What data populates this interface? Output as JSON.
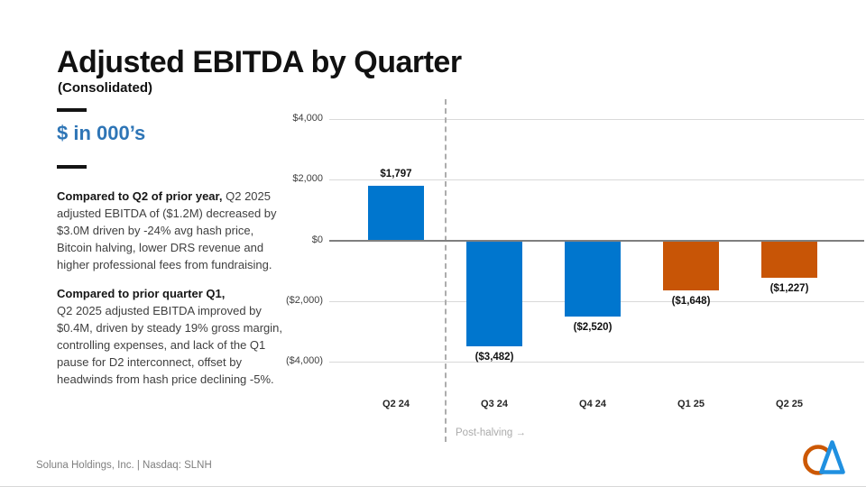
{
  "header": {
    "title": "Adjusted EBITDA by Quarter",
    "subtitle": "(Consolidated)",
    "units_label": "$ in 000’s"
  },
  "commentary": [
    {
      "lead": "Compared to Q2 of prior year,",
      "rest": " Q2 2025 adjusted EBITDA of ($1.2M) decreased by $3.0M driven by -24% avg hash price, Bitcoin halving, lower DRS revenue and higher professional fees from fundraising."
    },
    {
      "lead": "Compared to prior quarter Q1,",
      "rest": "Q2 2025 adjusted EBITDA improved by $0.4M, driven by steady 19% gross margin, controlling expenses, and lack of the Q1 pause for D2 interconnect, offset by headwinds from hash price declining -5%."
    }
  ],
  "chart_data": {
    "type": "bar",
    "title": "Adjusted EBITDA by Quarter (Consolidated), $ in 000's",
    "categories": [
      "Q2 24",
      "Q3 24",
      "Q4 24",
      "Q1 25",
      "Q2 25"
    ],
    "values": [
      1797,
      -3482,
      -2520,
      -1648,
      -1227
    ],
    "value_labels": [
      "$1,797",
      "($3,482)",
      "($2,520)",
      "($1,648)",
      "($1,227)"
    ],
    "bar_colors": [
      "#0076CE",
      "#0076CE",
      "#0076CE",
      "#C85506",
      "#C85506"
    ],
    "y_ticks": [
      {
        "value": 4000,
        "label": "$4,000"
      },
      {
        "value": 2000,
        "label": "$2,000"
      },
      {
        "value": 0,
        "label": "$0"
      },
      {
        "value": -2000,
        "label": "($2,000)"
      },
      {
        "value": -4000,
        "label": "($4,000)"
      }
    ],
    "ylim": [
      -4600,
      4600
    ],
    "grid": true,
    "legend": false,
    "divider_after_category": "Q2 24",
    "divider_label": "Post-halving →"
  },
  "footer": {
    "text": "Soluna Holdings, Inc. |  Nasdaq: SLNH"
  },
  "colors": {
    "bar_blue": "#0076CE",
    "bar_orange": "#C85506",
    "units_blue": "#2E75B6",
    "gridline": "#D9D9D9",
    "zero_line": "#7F7F7F",
    "divider_gray": "#ADADAD",
    "footer_gray": "#7F7F7F",
    "logo_orange": "#CC5804",
    "logo_blue": "#2090E0"
  }
}
